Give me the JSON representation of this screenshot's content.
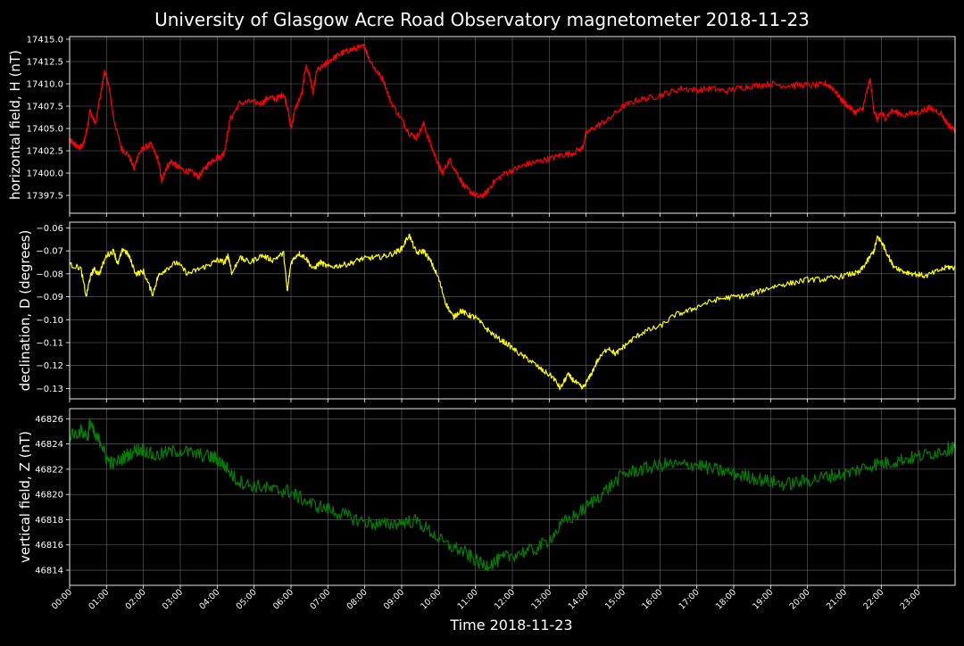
{
  "chart_data": {
    "title": "University of Glasgow Acre Road Observatory magnetometer 2018-11-23",
    "xlabel": "Time 2018-11-23",
    "x_ticks": [
      "00:00",
      "01:00",
      "02:00",
      "03:00",
      "04:00",
      "05:00",
      "06:00",
      "07:00",
      "08:00",
      "09:00",
      "10:00",
      "11:00",
      "12:00",
      "13:00",
      "14:00",
      "15:00",
      "16:00",
      "17:00",
      "18:00",
      "19:00",
      "20:00",
      "21:00",
      "22:00",
      "23:00"
    ],
    "x_range_hours": [
      0,
      24
    ],
    "background": "#000000",
    "grid_color": "#666666",
    "panels": [
      {
        "type": "line",
        "name": "H",
        "ylabel": "horizontal field, H (nT)",
        "color": "#ff0000",
        "ylim": [
          17395.5,
          17415.3
        ],
        "y_ticks": [
          17397.5,
          17400.0,
          17402.5,
          17405.0,
          17407.5,
          17410.0,
          17412.5,
          17415.0
        ],
        "y_tick_labels": [
          "17397.5",
          "17400.0",
          "17402.5",
          "17405.0",
          "17407.5",
          "17410.0",
          "17412.5",
          "17415.0"
        ],
        "noise": 0.35,
        "x_hours": [
          0,
          0.1,
          0.25,
          0.35,
          0.45,
          0.55,
          0.7,
          0.85,
          0.95,
          1.05,
          1.2,
          1.4,
          1.6,
          1.75,
          1.85,
          2.0,
          2.2,
          2.4,
          2.5,
          2.6,
          2.75,
          2.9,
          3.1,
          3.3,
          3.5,
          3.7,
          3.9,
          4.1,
          4.2,
          4.35,
          4.6,
          4.9,
          5.2,
          5.4,
          5.6,
          5.8,
          5.9,
          6.0,
          6.1,
          6.3,
          6.4,
          6.5,
          6.6,
          6.7,
          6.9,
          7.0,
          7.2,
          7.4,
          7.6,
          7.8,
          8.0,
          8.1,
          8.3,
          8.5,
          8.7,
          9.0,
          9.2,
          9.4,
          9.6,
          9.8,
          10.0,
          10.1,
          10.3,
          10.5,
          10.7,
          10.9,
          11.1,
          11.3,
          11.5,
          11.8,
          12.1,
          12.4,
          12.7,
          13.0,
          13.3,
          13.6,
          13.9,
          14.0,
          14.3,
          14.6,
          15.0,
          15.4,
          15.8,
          16.2,
          16.6,
          17.0,
          17.4,
          17.8,
          18.2,
          18.6,
          19.0,
          19.4,
          19.8,
          20.2,
          20.5,
          20.7,
          20.9,
          21.1,
          21.3,
          21.5,
          21.6,
          21.7,
          21.8,
          21.9,
          22.0,
          22.1,
          22.3,
          22.6,
          23.0,
          23.3,
          23.6,
          23.8,
          24.0
        ],
        "values": [
          17403.6,
          17403.4,
          17402.8,
          17403.0,
          17404.5,
          17407.0,
          17405.5,
          17409.0,
          17411.5,
          17410.0,
          17406.0,
          17402.8,
          17402.0,
          17400.5,
          17402.0,
          17402.8,
          17403.2,
          17401.5,
          17399.0,
          17400.5,
          17401.3,
          17400.8,
          17400.3,
          17400.1,
          17399.6,
          17400.7,
          17401.6,
          17401.8,
          17402.5,
          17406.0,
          17407.8,
          17408.0,
          17407.8,
          17408.5,
          17408.3,
          17408.9,
          17407.5,
          17405.0,
          17407.0,
          17409.0,
          17412.0,
          17411.0,
          17409.0,
          17411.5,
          17412.0,
          17412.5,
          17413.0,
          17413.5,
          17413.8,
          17414.0,
          17414.2,
          17413.0,
          17411.5,
          17410.5,
          17408.0,
          17406.0,
          17404.5,
          17404.0,
          17405.5,
          17403.0,
          17401.0,
          17400.0,
          17401.5,
          17400.0,
          17398.5,
          17397.8,
          17397.3,
          17397.8,
          17399.0,
          17400.0,
          17400.5,
          17401.0,
          17401.3,
          17401.6,
          17402.0,
          17402.2,
          17402.8,
          17404.5,
          17405.3,
          17406.0,
          17407.5,
          17408.2,
          17408.5,
          17409.0,
          17409.5,
          17409.3,
          17409.5,
          17409.2,
          17409.6,
          17409.8,
          17410.0,
          17409.8,
          17409.9,
          17409.8,
          17410.0,
          17409.5,
          17408.3,
          17407.5,
          17406.8,
          17407.2,
          17409.0,
          17410.5,
          17407.0,
          17406.0,
          17406.8,
          17406.2,
          17407.0,
          17406.5,
          17406.8,
          17407.3,
          17406.8,
          17405.5,
          17404.8
        ]
      },
      {
        "type": "line",
        "name": "D",
        "ylabel": "declination, D (degrees)",
        "color": "#ffff00",
        "ylim": [
          -0.1345,
          -0.0575
        ],
        "y_ticks": [
          -0.13,
          -0.12,
          -0.11,
          -0.1,
          -0.09,
          -0.08,
          -0.07,
          -0.06
        ],
        "y_tick_labels": [
          "−0.13",
          "−0.12",
          "−0.11",
          "−0.10",
          "−0.09",
          "−0.08",
          "−0.07",
          "−0.06"
        ],
        "noise": 0.0012,
        "x_hours": [
          0,
          0.3,
          0.45,
          0.55,
          0.65,
          0.8,
          1.0,
          1.2,
          1.3,
          1.45,
          1.6,
          1.8,
          2.0,
          2.25,
          2.4,
          2.6,
          2.9,
          3.2,
          3.5,
          3.8,
          4.0,
          4.2,
          4.3,
          4.4,
          4.6,
          4.9,
          5.2,
          5.5,
          5.8,
          5.9,
          6.0,
          6.2,
          6.4,
          6.6,
          6.8,
          7.0,
          7.3,
          7.6,
          7.9,
          8.2,
          8.5,
          8.8,
          9.0,
          9.2,
          9.4,
          9.6,
          9.8,
          10.0,
          10.2,
          10.4,
          10.6,
          10.8,
          11.0,
          11.3,
          11.6,
          11.9,
          12.2,
          12.5,
          12.8,
          13.1,
          13.3,
          13.5,
          13.7,
          13.9,
          14.1,
          14.3,
          14.6,
          14.8,
          15.0,
          15.3,
          15.6,
          16.0,
          16.4,
          16.8,
          17.2,
          17.6,
          18.0,
          18.4,
          18.8,
          19.2,
          19.6,
          20.0,
          20.4,
          20.8,
          21.2,
          21.4,
          21.6,
          21.8,
          21.9,
          22.0,
          22.1,
          22.3,
          22.6,
          22.9,
          23.2,
          23.5,
          23.8,
          24.0
        ],
        "values": [
          -0.076,
          -0.0775,
          -0.09,
          -0.082,
          -0.078,
          -0.08,
          -0.072,
          -0.07,
          -0.076,
          -0.069,
          -0.072,
          -0.08,
          -0.079,
          -0.089,
          -0.081,
          -0.078,
          -0.075,
          -0.08,
          -0.078,
          -0.076,
          -0.074,
          -0.075,
          -0.072,
          -0.08,
          -0.073,
          -0.075,
          -0.072,
          -0.074,
          -0.071,
          -0.088,
          -0.075,
          -0.071,
          -0.073,
          -0.078,
          -0.075,
          -0.077,
          -0.0765,
          -0.0755,
          -0.0735,
          -0.073,
          -0.0725,
          -0.071,
          -0.069,
          -0.063,
          -0.071,
          -0.07,
          -0.075,
          -0.082,
          -0.093,
          -0.099,
          -0.096,
          -0.098,
          -0.099,
          -0.104,
          -0.108,
          -0.111,
          -0.115,
          -0.118,
          -0.122,
          -0.125,
          -0.13,
          -0.124,
          -0.127,
          -0.13,
          -0.125,
          -0.118,
          -0.112,
          -0.115,
          -0.112,
          -0.108,
          -0.105,
          -0.103,
          -0.098,
          -0.096,
          -0.093,
          -0.091,
          -0.09,
          -0.0895,
          -0.087,
          -0.085,
          -0.084,
          -0.0825,
          -0.0825,
          -0.0815,
          -0.08,
          -0.0795,
          -0.075,
          -0.07,
          -0.064,
          -0.066,
          -0.069,
          -0.076,
          -0.079,
          -0.08,
          -0.081,
          -0.079,
          -0.077,
          -0.0775
        ]
      },
      {
        "type": "line",
        "name": "Z",
        "ylabel": "vertical field, Z (nT)",
        "color": "#008000",
        "ylim": [
          46812.8,
          46826.8
        ],
        "y_ticks": [
          46814,
          46816,
          46818,
          46820,
          46822,
          46824,
          46826
        ],
        "y_tick_labels": [
          "46814",
          "46816",
          "46818",
          "46820",
          "46822",
          "46824",
          "46826"
        ],
        "noise": 0.55,
        "x_hours": [
          0,
          0.3,
          0.5,
          0.55,
          0.7,
          0.85,
          1.0,
          1.2,
          1.5,
          1.8,
          2.0,
          2.3,
          2.6,
          3.0,
          3.4,
          3.8,
          4.0,
          4.2,
          4.5,
          4.8,
          5.2,
          5.6,
          5.9,
          6.2,
          6.6,
          7.0,
          7.4,
          7.8,
          8.2,
          8.6,
          9.0,
          9.4,
          9.8,
          10.2,
          10.6,
          10.9,
          11.2,
          11.5,
          11.8,
          12.2,
          12.6,
          13.0,
          13.4,
          13.8,
          14.2,
          14.6,
          15.0,
          15.4,
          15.8,
          16.2,
          16.6,
          17.0,
          17.4,
          17.8,
          18.2,
          18.6,
          19.0,
          19.4,
          19.8,
          20.2,
          20.6,
          21.0,
          21.4,
          21.8,
          22.2,
          22.6,
          23.0,
          23.4,
          23.8,
          24.0
        ],
        "values": [
          46824.7,
          46825.0,
          46824.6,
          46825.8,
          46824.5,
          46824.2,
          46822.8,
          46822.4,
          46823.0,
          46823.5,
          46823.6,
          46823.0,
          46823.3,
          46823.5,
          46823.2,
          46823.0,
          46822.8,
          46822.3,
          46821.2,
          46820.8,
          46820.6,
          46820.3,
          46820.3,
          46819.8,
          46819.2,
          46818.8,
          46818.4,
          46818.0,
          46817.7,
          46817.6,
          46817.8,
          46817.9,
          46817.0,
          46816.0,
          46815.6,
          46815.0,
          46814.4,
          46814.6,
          46815.0,
          46815.4,
          46815.6,
          46816.4,
          46817.8,
          46818.5,
          46819.5,
          46820.5,
          46821.6,
          46821.9,
          46822.2,
          46822.4,
          46822.3,
          46822.4,
          46822.0,
          46821.8,
          46821.5,
          46821.3,
          46821.0,
          46820.8,
          46821.0,
          46821.2,
          46821.5,
          46821.6,
          46822.0,
          46822.4,
          46822.5,
          46822.8,
          46823.0,
          46823.3,
          46823.6,
          46823.8
        ]
      }
    ]
  }
}
